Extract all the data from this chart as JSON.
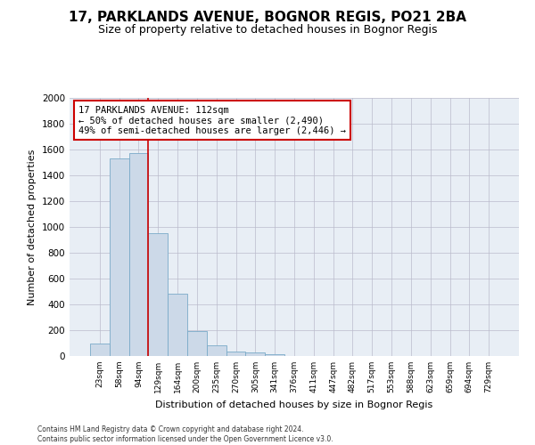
{
  "title": "17, PARKLANDS AVENUE, BOGNOR REGIS, PO21 2BA",
  "subtitle": "Size of property relative to detached houses in Bognor Regis",
  "xlabel": "Distribution of detached houses by size in Bognor Regis",
  "ylabel": "Number of detached properties",
  "categories": [
    "23sqm",
    "58sqm",
    "94sqm",
    "129sqm",
    "164sqm",
    "200sqm",
    "235sqm",
    "270sqm",
    "305sqm",
    "341sqm",
    "376sqm",
    "411sqm",
    "447sqm",
    "482sqm",
    "517sqm",
    "553sqm",
    "588sqm",
    "623sqm",
    "659sqm",
    "694sqm",
    "729sqm"
  ],
  "values": [
    100,
    1530,
    1570,
    950,
    480,
    190,
    85,
    35,
    25,
    15,
    0,
    0,
    0,
    0,
    0,
    0,
    0,
    0,
    0,
    0,
    0
  ],
  "ylim": [
    0,
    2000
  ],
  "yticks": [
    0,
    200,
    400,
    600,
    800,
    1000,
    1200,
    1400,
    1600,
    1800,
    2000
  ],
  "bar_color": "#ccd9e8",
  "bar_edge_color": "#7aaac8",
  "grid_color": "#bbbbcc",
  "background_color": "#e8eef5",
  "red_line_x": 2.5,
  "annotation_text": "17 PARKLANDS AVENUE: 112sqm\n← 50% of detached houses are smaller (2,490)\n49% of semi-detached houses are larger (2,446) →",
  "annotation_box_color": "#ffffff",
  "annotation_box_edge": "#cc0000",
  "footer_line1": "Contains HM Land Registry data © Crown copyright and database right 2024.",
  "footer_line2": "Contains public sector information licensed under the Open Government Licence v3.0.",
  "title_fontsize": 11,
  "subtitle_fontsize": 9,
  "ylabel_fontsize": 8,
  "xlabel_fontsize": 8
}
